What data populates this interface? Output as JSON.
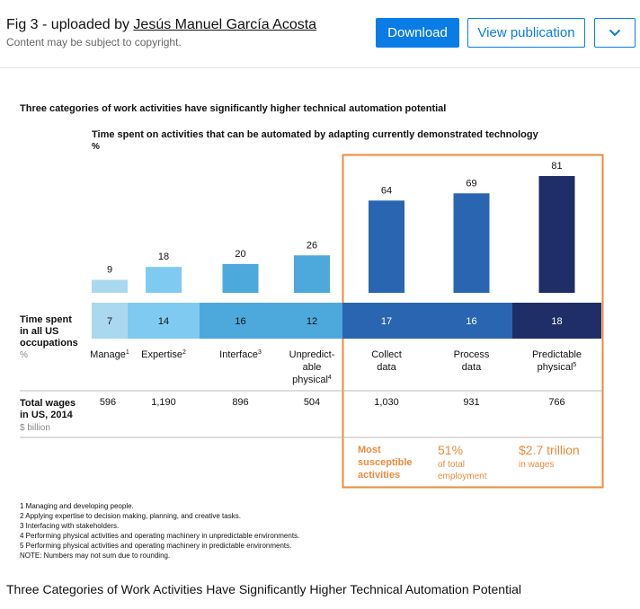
{
  "header": {
    "fig_prefix": "Fig 3 - uploaded by ",
    "author": "Jesús Manuel García Acosta",
    "copyright": "Content may be subject to copyright.",
    "download_label": "Download",
    "view_label": "View publication",
    "more_icon": "chevron-down-icon"
  },
  "colors": {
    "light": "#a9d8ef",
    "mid_light": "#7fcaf0",
    "mid": "#4da8dc",
    "dark": "#2965b0",
    "navy": "#1f2e67",
    "highlight": "#ee8a3c",
    "accent": "#0a7ce6"
  },
  "chart_data": {
    "type": "bar",
    "title": "Three categories of work activities have significantly higher technical automation potential",
    "subtitle": "Time spent on activities that can be automated by adapting currently demonstrated technology",
    "unit": "%",
    "categories": [
      {
        "name": "Manage",
        "sup": "1",
        "lines": [
          "Manage"
        ]
      },
      {
        "name": "Expertise",
        "sup": "2",
        "lines": [
          "Expertise"
        ]
      },
      {
        "name": "Interface",
        "sup": "3",
        "lines": [
          "Interface"
        ]
      },
      {
        "name": "Unpredictable physical",
        "sup": "4",
        "lines": [
          "Unpredict-",
          "able",
          "physical"
        ]
      },
      {
        "name": "Collect data",
        "sup": "",
        "lines": [
          "Collect",
          "data"
        ]
      },
      {
        "name": "Process data",
        "sup": "",
        "lines": [
          "Process",
          "data"
        ]
      },
      {
        "name": "Predictable physical",
        "sup": "5",
        "lines": [
          "Predictable",
          "physical"
        ]
      }
    ],
    "values": [
      9,
      18,
      20,
      26,
      64,
      69,
      81
    ],
    "ylim": [
      0,
      81
    ],
    "time_spent": {
      "label_lines": [
        "Time spent",
        "in all US",
        "occupations"
      ],
      "unit": "%",
      "values": [
        7,
        14,
        16,
        12,
        17,
        16,
        18
      ]
    },
    "wages": {
      "label_lines": [
        "Total wages",
        "in US, 2014"
      ],
      "unit": "$ billion",
      "values": [
        "596",
        "1,190",
        "896",
        "504",
        "1,030",
        "931",
        "766"
      ]
    },
    "highlight": {
      "most_lines": [
        "Most",
        "susceptible",
        "activities"
      ],
      "employment_big": "51%",
      "employment_lines": [
        "of total",
        "employment"
      ],
      "wages_big": "$2.7 trillion",
      "wages_small": "in wages"
    },
    "footnotes": [
      "1  Managing and developing people.",
      "2  Applying expertise to decision making, planning, and creative tasks.",
      "3  Interfacing with stakeholders.",
      "4  Performing physical activities and operating machinery in unpredictable environments.",
      "5  Performing physical activities and operating machinery in predictable environments.",
      "NOTE: Numbers may not sum due to rounding."
    ]
  },
  "caption": "Three Categories of Work Activities Have Significantly Higher Technical Automation Potential"
}
